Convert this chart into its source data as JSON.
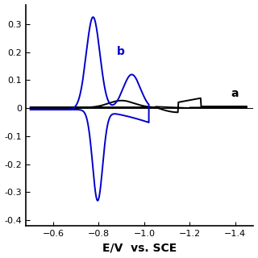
{
  "xlim": [
    -0.48,
    -1.48
  ],
  "ylim": [
    -0.42,
    0.37
  ],
  "xlabel": "E/V  vs. SCE",
  "xlabel_fontsize": 10,
  "xticks": [
    -0.6,
    -0.8,
    -1.0,
    -1.2,
    -1.4
  ],
  "yticks": [
    -0.4,
    -0.3,
    -0.2,
    -0.1,
    0,
    0.1,
    0.2,
    0.3
  ],
  "curve_a_color": "#000000",
  "curve_b_color": "#0000cc",
  "label_a": "a",
  "label_b": "b"
}
